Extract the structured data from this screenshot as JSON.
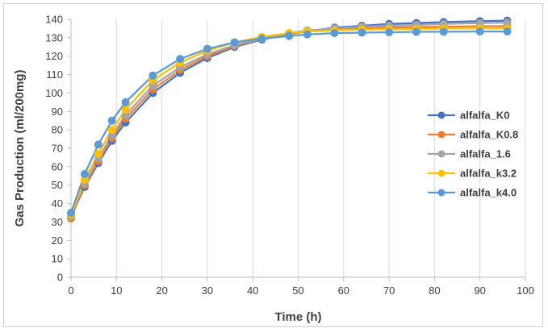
{
  "chart_data": {
    "type": "line",
    "title": "",
    "xlabel": "Time (h)",
    "ylabel": "Gas Production (ml/200mg)",
    "xlim": [
      0,
      100
    ],
    "ylim": [
      0,
      140
    ],
    "x_ticks": [
      0,
      10,
      20,
      30,
      40,
      50,
      60,
      70,
      80,
      90,
      100
    ],
    "y_ticks": [
      0,
      10,
      20,
      30,
      40,
      50,
      60,
      70,
      80,
      90,
      100,
      110,
      120,
      130,
      140
    ],
    "grid": "vertical",
    "legend_position": "right",
    "x": [
      0,
      3,
      6,
      9,
      12,
      18,
      24,
      30,
      36,
      42,
      48,
      52,
      58,
      64,
      70,
      76,
      82,
      90,
      96
    ],
    "series": [
      {
        "name": "alfalfa_K0",
        "color": "#4472c4",
        "values": [
          33,
          49,
          62,
          74,
          84,
          100,
          111,
          119,
          125,
          129,
          132,
          133.5,
          135.5,
          136.5,
          137.5,
          138,
          138.5,
          139,
          139.3
        ]
      },
      {
        "name": "alfalfa_K0.8",
        "color": "#ed7d31",
        "values": [
          32,
          50,
          63,
          75.5,
          86,
          102,
          112.5,
          120,
          125.5,
          129.5,
          132,
          133.5,
          134.5,
          135,
          135.5,
          135.8,
          136,
          136.2,
          136.3
        ]
      },
      {
        "name": "alfalfa_1.6",
        "color": "#a5a5a5",
        "values": [
          33,
          51,
          64.5,
          77,
          88,
          104,
          114,
          121,
          126,
          129.5,
          132.5,
          134,
          135,
          136,
          136.5,
          137,
          137.5,
          138,
          138.2
        ]
      },
      {
        "name": "alfalfa_k3.2",
        "color": "#ffc000",
        "values": [
          34,
          53,
          67,
          80,
          91,
          107,
          116.5,
          123,
          127.5,
          130.5,
          132.5,
          133.5,
          134,
          134.5,
          134.7,
          134.8,
          135,
          135,
          135
        ]
      },
      {
        "name": "alfalfa_k4.0",
        "color": "#5b9bd5",
        "values": [
          35,
          56,
          72,
          85,
          95,
          109.5,
          118.5,
          124,
          127.5,
          129.5,
          131,
          131.8,
          132.5,
          132.8,
          133,
          133.2,
          133.3,
          133.4,
          133.4
        ]
      }
    ]
  }
}
